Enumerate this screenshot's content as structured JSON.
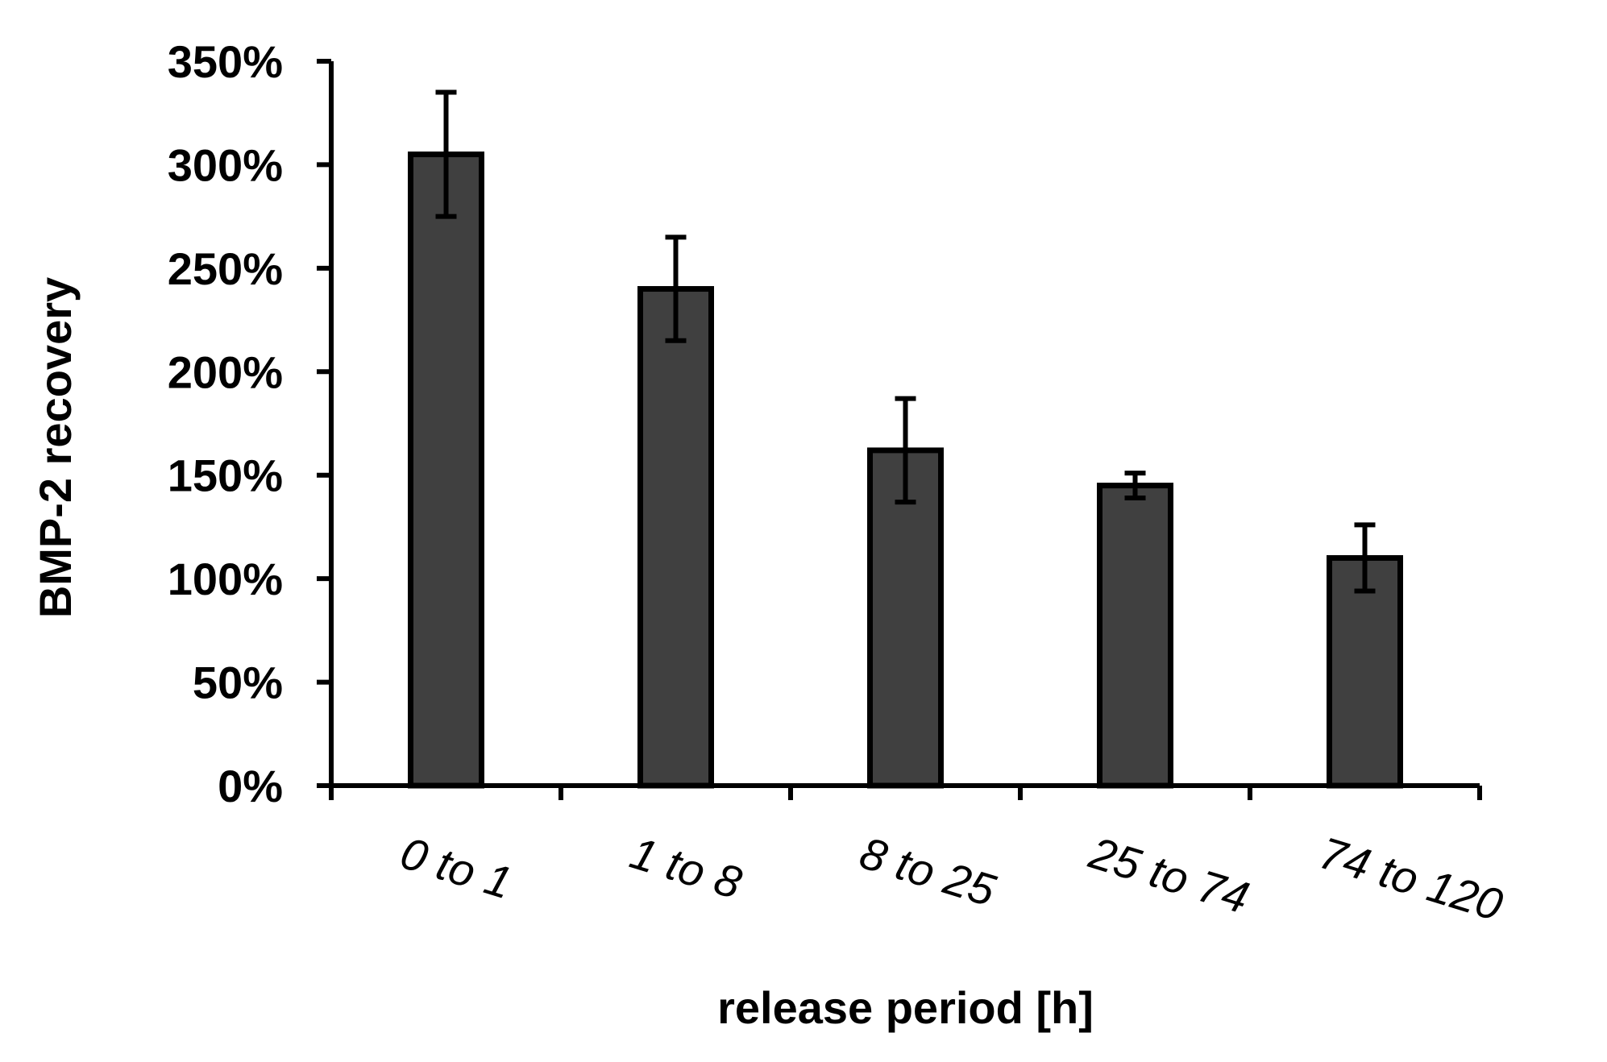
{
  "chart_data": {
    "type": "bar",
    "title": "",
    "xlabel": "release period [h]",
    "ylabel": "BMP-2 recovery",
    "categories": [
      "0 to 1",
      "1 to 8",
      "8 to 25",
      "25 to 74",
      "74 to 120"
    ],
    "values": [
      305,
      240,
      162,
      145,
      110
    ],
    "error_bars": [
      30,
      25,
      25,
      6,
      16
    ],
    "y_unit": "%",
    "ylim": [
      0,
      350
    ],
    "y_ticks": [
      0,
      50,
      100,
      150,
      200,
      250,
      300,
      350
    ],
    "y_tick_labels": [
      "0%",
      "50%",
      "100%",
      "150%",
      "200%",
      "250%",
      "300%",
      "350%"
    ],
    "grid": false,
    "legend": "none",
    "colors": {
      "bar_fill": "#404040",
      "bar_edge": "#000000",
      "axis": "#000000"
    }
  }
}
